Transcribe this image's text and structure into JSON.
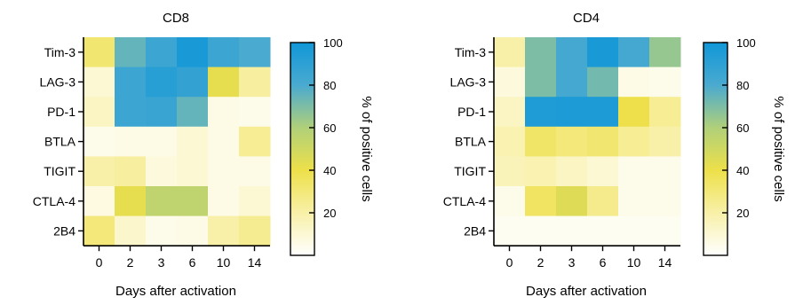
{
  "chart_data": [
    {
      "type": "heatmap",
      "title": "CD8",
      "xlabel": "Days after activation",
      "x_categories": [
        "0",
        "2",
        "3",
        "6",
        "10",
        "14"
      ],
      "y_categories": [
        "Tim-3",
        "LAG-3",
        "PD-1",
        "BTLA",
        "TIGIT",
        "CTLA-4",
        "2B4"
      ],
      "values": [
        [
          32,
          75,
          85,
          97,
          85,
          80
        ],
        [
          10,
          85,
          92,
          88,
          42,
          22
        ],
        [
          14,
          85,
          86,
          75,
          6,
          5
        ],
        [
          5,
          6,
          6,
          10,
          6,
          24
        ],
        [
          20,
          22,
          8,
          10,
          6,
          6
        ],
        [
          7,
          42,
          55,
          55,
          6,
          10
        ],
        [
          30,
          12,
          5,
          6,
          20,
          25
        ]
      ],
      "colorbar": {
        "label": "% of positive cells",
        "range": [
          0,
          100
        ],
        "ticks": [
          "20",
          "40",
          "60",
          "80",
          "100"
        ],
        "colors": [
          "#ffffff",
          "#f8f0a8",
          "#ede04a",
          "#b0d07a",
          "#4aaad0",
          "#1097d8"
        ]
      }
    },
    {
      "type": "heatmap",
      "title": "CD4",
      "xlabel": "Days after activation",
      "x_categories": [
        "0",
        "2",
        "3",
        "6",
        "10",
        "14"
      ],
      "y_categories": [
        "Tim-3",
        "LAG-3",
        "PD-1",
        "BTLA",
        "TIGIT",
        "CTLA-4",
        "2B4"
      ],
      "values": [
        [
          20,
          70,
          82,
          97,
          82,
          65
        ],
        [
          8,
          70,
          82,
          72,
          6,
          5
        ],
        [
          14,
          95,
          96,
          96,
          40,
          24
        ],
        [
          18,
          34,
          30,
          32,
          24,
          20
        ],
        [
          16,
          18,
          14,
          10,
          5,
          5
        ],
        [
          5,
          35,
          45,
          26,
          5,
          5
        ],
        [
          3,
          3,
          3,
          3,
          3,
          3
        ]
      ],
      "colorbar": {
        "label": "% of positive cells",
        "range": [
          0,
          100
        ],
        "ticks": [
          "20",
          "40",
          "60",
          "80",
          "100"
        ],
        "colors": [
          "#ffffff",
          "#f8f0a8",
          "#ede04a",
          "#b0d07a",
          "#4aaad0",
          "#1097d8"
        ]
      }
    }
  ]
}
